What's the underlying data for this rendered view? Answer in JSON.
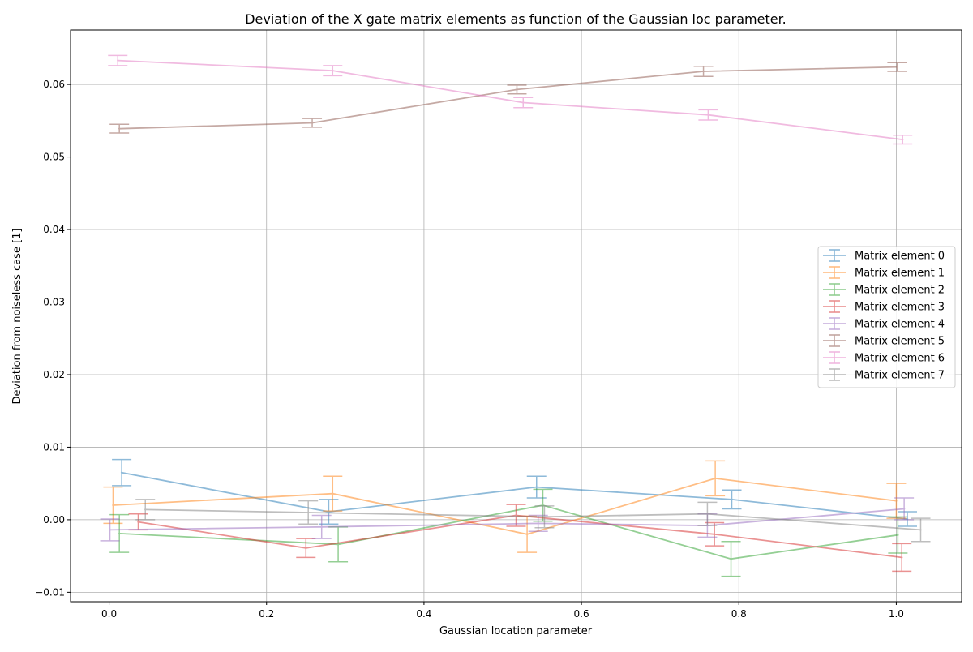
{
  "chart_data": {
    "type": "line",
    "title": "Deviation of the X gate matrix elements as function of the Gaussian loc parameter.",
    "xlabel": "Gaussian location parameter",
    "ylabel": "Deviation from noiseless case [1]",
    "xlim": [
      -0.049,
      1.083
    ],
    "ylim": [
      -0.0113,
      0.0675
    ],
    "grid": true,
    "legend_position": "center-right",
    "x_ticks": [
      {
        "value": 0.0,
        "label": "0.0"
      },
      {
        "value": 0.2,
        "label": "0.2"
      },
      {
        "value": 0.4,
        "label": "0.4"
      },
      {
        "value": 0.6,
        "label": "0.6"
      },
      {
        "value": 0.8,
        "label": "0.8"
      },
      {
        "value": 1.0,
        "label": "1.0"
      }
    ],
    "y_ticks": [
      {
        "value": -0.01,
        "label": "−0.01"
      },
      {
        "value": 0.0,
        "label": "0.00"
      },
      {
        "value": 0.01,
        "label": "0.01"
      },
      {
        "value": 0.02,
        "label": "0.02"
      },
      {
        "value": 0.03,
        "label": "0.03"
      },
      {
        "value": 0.04,
        "label": "0.04"
      },
      {
        "value": 0.05,
        "label": "0.05"
      },
      {
        "value": 0.06,
        "label": "0.06"
      }
    ],
    "series": [
      {
        "name": "Matrix element 0",
        "color": "#1f77b4",
        "x": [
          0.016,
          0.279,
          0.543,
          0.791,
          1.014
        ],
        "y": [
          0.0065,
          0.0011,
          0.0045,
          0.0028,
          0.0001
        ],
        "err": [
          0.0018,
          0.0017,
          0.0015,
          0.0013,
          0.001
        ]
      },
      {
        "name": "Matrix element 1",
        "color": "#ff7f0e",
        "x": [
          0.005,
          0.284,
          0.531,
          0.77,
          1.0
        ],
        "y": [
          0.002,
          0.0036,
          -0.002,
          0.0057,
          0.0026
        ],
        "err": [
          0.0025,
          0.0024,
          0.0025,
          0.0024,
          0.0024
        ]
      },
      {
        "name": "Matrix element 2",
        "color": "#2ca02c",
        "x": [
          0.013,
          0.291,
          0.551,
          0.79,
          1.002
        ],
        "y": [
          -0.0019,
          -0.0034,
          0.002,
          -0.0054,
          -0.0021
        ],
        "err": [
          0.0026,
          0.0024,
          0.0022,
          0.0024,
          0.0025
        ]
      },
      {
        "name": "Matrix element 3",
        "color": "#d62728",
        "x": [
          0.037,
          0.25,
          0.517,
          0.769,
          1.007
        ],
        "y": [
          -0.0003,
          -0.0039,
          0.0006,
          -0.002,
          -0.0052
        ],
        "err": [
          0.0011,
          0.0013,
          0.0015,
          0.0016,
          0.0019
        ]
      },
      {
        "name": "Matrix element 4",
        "color": "#9467bd",
        "x": [
          0.001,
          0.27,
          0.545,
          0.76,
          1.01
        ],
        "y": [
          -0.0014,
          -0.001,
          -0.0005,
          -0.0008,
          0.0015
        ],
        "err": [
          0.0015,
          0.0016,
          0.0011,
          0.0016,
          0.0015
        ]
      },
      {
        "name": "Matrix element 5",
        "color": "#8c564b",
        "x": [
          0.013,
          0.258,
          0.518,
          0.755,
          1.001
        ],
        "y": [
          0.0539,
          0.0547,
          0.0593,
          0.0618,
          0.0624
        ],
        "err": [
          0.0006,
          0.0006,
          0.0006,
          0.0007,
          0.0006
        ]
      },
      {
        "name": "Matrix element 6",
        "color": "#e377c2",
        "x": [
          0.011,
          0.284,
          0.526,
          0.761,
          1.008
        ],
        "y": [
          0.0633,
          0.0619,
          0.0575,
          0.0558,
          0.0524
        ],
        "err": [
          0.0007,
          0.0007,
          0.0007,
          0.0007,
          0.0006
        ]
      },
      {
        "name": "Matrix element 7",
        "color": "#7f7f7f",
        "x": [
          0.046,
          0.253,
          0.553,
          0.76,
          1.031
        ],
        "y": [
          0.0014,
          0.001,
          0.0004,
          0.0008,
          -0.0014
        ],
        "err": [
          0.0014,
          0.0016,
          0.0015,
          0.0016,
          0.0016
        ]
      }
    ]
  }
}
